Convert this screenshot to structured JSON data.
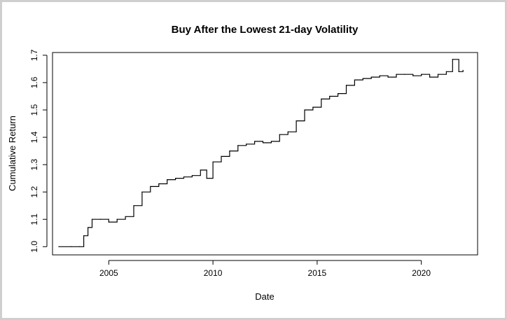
{
  "chart_data": {
    "type": "line",
    "title": "Buy After the Lowest 21-day Volatility",
    "xlabel": "Date",
    "ylabel": "Cumulative Return",
    "x_ticks": [
      "2005",
      "2010",
      "2015",
      "2020"
    ],
    "y_ticks": [
      "1.0",
      "1.1",
      "1.2",
      "1.3",
      "1.4",
      "1.5",
      "1.6",
      "1.7"
    ],
    "xlim": [
      2002.3,
      2022.7
    ],
    "ylim": [
      0.97,
      1.71
    ],
    "grid": false,
    "legend": "none",
    "line_color": "#000000",
    "series": [
      {
        "x": [
          2002.6,
          2003.2,
          2003.6,
          2003.8,
          2004.0,
          2004.2,
          2004.6,
          2005.0,
          2005.4,
          2005.8,
          2006.2,
          2006.6,
          2007.0,
          2007.4,
          2007.8,
          2008.2,
          2008.6,
          2009.0,
          2009.4,
          2009.7,
          2010.0,
          2010.4,
          2010.8,
          2011.2,
          2011.6,
          2012.0,
          2012.4,
          2012.8,
          2013.2,
          2013.6,
          2014.0,
          2014.4,
          2014.8,
          2015.2,
          2015.6,
          2016.0,
          2016.4,
          2016.8,
          2017.2,
          2017.6,
          2018.0,
          2018.4,
          2018.8,
          2019.2,
          2019.6,
          2020.0,
          2020.4,
          2020.8,
          2021.2,
          2021.5,
          2021.8,
          2022.0
        ],
        "y": [
          1.0,
          1.0,
          1.0,
          1.04,
          1.07,
          1.1,
          1.1,
          1.09,
          1.1,
          1.11,
          1.15,
          1.2,
          1.22,
          1.23,
          1.245,
          1.25,
          1.255,
          1.26,
          1.28,
          1.25,
          1.31,
          1.33,
          1.35,
          1.37,
          1.375,
          1.385,
          1.38,
          1.385,
          1.41,
          1.42,
          1.46,
          1.5,
          1.51,
          1.54,
          1.55,
          1.56,
          1.59,
          1.61,
          1.615,
          1.62,
          1.625,
          1.62,
          1.63,
          1.63,
          1.625,
          1.63,
          1.62,
          1.63,
          1.64,
          1.685,
          1.64,
          1.645
        ]
      }
    ]
  }
}
